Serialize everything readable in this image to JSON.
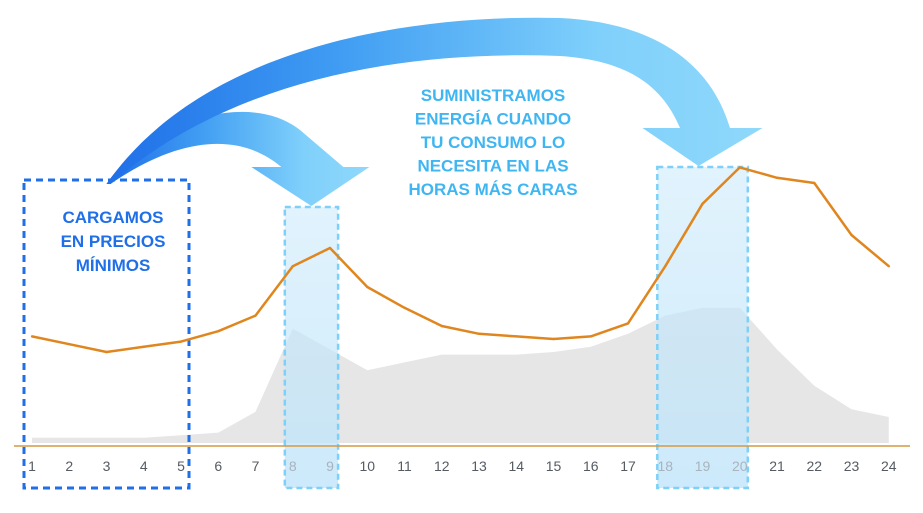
{
  "chart_data": {
    "type": "area",
    "x": [
      1,
      2,
      3,
      4,
      5,
      6,
      7,
      8,
      9,
      10,
      11,
      12,
      13,
      14,
      15,
      16,
      17,
      18,
      19,
      20,
      21,
      22,
      23,
      24
    ],
    "series": [
      {
        "kind": "area",
        "color": "#e6e6e6",
        "values": [
          1,
          1,
          1,
          1,
          1.5,
          2,
          6,
          22,
          18,
          14,
          15.5,
          17,
          17,
          17,
          17.5,
          18.5,
          21,
          24.5,
          26,
          26,
          18,
          11,
          6.5,
          5
        ]
      },
      {
        "kind": "line",
        "color": "#e0861f",
        "values": [
          20.5,
          19,
          17.5,
          18.5,
          19.5,
          21.5,
          24.5,
          34,
          37.5,
          30,
          26,
          22.5,
          21,
          20.5,
          20,
          20.5,
          23,
          34,
          46,
          53,
          51,
          50,
          40,
          34
        ]
      }
    ],
    "xlim": [
      1,
      24
    ],
    "grid": false,
    "highlights": [
      {
        "role": "charge",
        "hours": [
          1,
          5
        ],
        "style": "dashed",
        "color": "#1f6fe8"
      },
      {
        "role": "supply",
        "hours": [
          8,
          9
        ],
        "style": "dashed-filled",
        "color": "#7dd0f7"
      },
      {
        "role": "supply",
        "hours": [
          18,
          20
        ],
        "style": "dashed-filled",
        "color": "#7dd0f7"
      }
    ],
    "annotations": [
      {
        "role": "charge",
        "lines": [
          "CARGAMOS",
          "EN PRECIOS",
          "MÍNIMOS"
        ],
        "color": "#1f6fe8"
      },
      {
        "role": "supply",
        "lines": [
          "SUMINISTRAMOS",
          "ENERGÍA CUANDO",
          "TU CONSUMO LO",
          "NECESITA EN LAS",
          "HORAS MÁS CARAS"
        ],
        "color": "#3fb6f2"
      }
    ],
    "arrows": [
      {
        "from_hour": 3,
        "to_hour": 8.5
      },
      {
        "from_hour": 3,
        "to_hour": 19
      }
    ],
    "colors": {
      "axis_line": "#d39a43",
      "arrow_light": "#8fd8fb",
      "arrow_dark": "#1f6fe8"
    }
  }
}
